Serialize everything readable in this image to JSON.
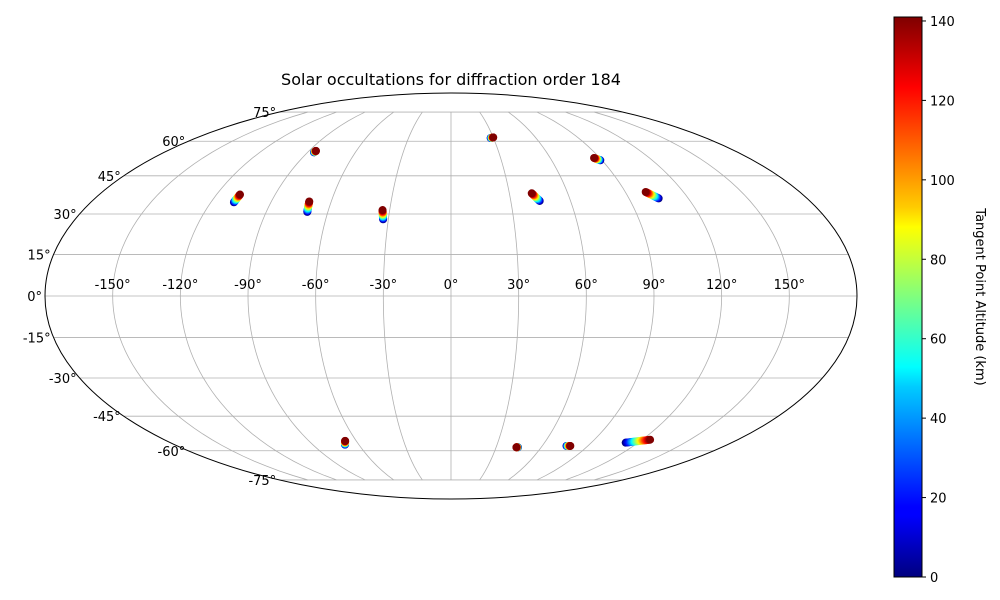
{
  "chart_data": {
    "type": "scatter",
    "projection": "mollweide",
    "title": "Solar occultations for diffraction order 184",
    "grid": true,
    "lon_tick_labels": [
      "-150°",
      "-120°",
      "-90°",
      "-60°",
      "-30°",
      "0°",
      "30°",
      "60°",
      "90°",
      "120°",
      "150°"
    ],
    "lon_ticks": [
      -150,
      -120,
      -90,
      -60,
      -30,
      0,
      30,
      60,
      90,
      120,
      150
    ],
    "lat_tick_labels": [
      "75°",
      "60°",
      "45°",
      "30°",
      "15°",
      "0°",
      "-15°",
      "-30°",
      "-45°",
      "-60°",
      "-75°"
    ],
    "lat_ticks": [
      75,
      60,
      45,
      30,
      15,
      0,
      -15,
      -30,
      -45,
      -60,
      -75
    ],
    "colorbar": {
      "label": "Tangent Point Altitude (km)",
      "colormap": "jet",
      "range": [
        0,
        141
      ],
      "tick_labels": [
        "0",
        "20",
        "40",
        "60",
        "80",
        "100",
        "120",
        "140"
      ],
      "ticks": [
        0,
        20,
        40,
        60,
        80,
        100,
        120,
        140
      ]
    },
    "occultations": [
      {
        "lon": [
          -108.5,
          -108.0
        ],
        "lat": [
          34.5,
          37.5
        ],
        "alt": [
          0,
          141
        ]
      },
      {
        "lon": [
          -86.0,
          -85.6
        ],
        "lat": [
          55.0,
          55.6
        ],
        "alt": [
          0,
          141
        ]
      },
      {
        "lon": [
          -70.0,
          -71.0
        ],
        "lat": [
          30.8,
          34.8
        ],
        "alt": [
          0,
          141
        ]
      },
      {
        "lon": [
          -32.5,
          -33.5
        ],
        "lat": [
          28.0,
          31.5
        ],
        "alt": [
          0,
          141
        ]
      },
      {
        "lon": [
          28.0,
          30.0
        ],
        "lat": [
          61.5,
          61.8
        ],
        "alt": [
          0,
          141
        ]
      },
      {
        "lon": [
          44.5,
          41.5
        ],
        "lat": [
          35.0,
          38.0
        ],
        "alt": [
          0,
          141
        ]
      },
      {
        "lon": [
          89.0,
          86.5
        ],
        "lat": [
          51.5,
          52.5
        ],
        "alt": [
          0,
          141
        ]
      },
      {
        "lon": [
          105.0,
          100.5
        ],
        "lat": [
          36.0,
          38.5
        ],
        "alt": [
          0,
          141
        ]
      },
      {
        "lon": [
          -69.0,
          -67.0
        ],
        "lat": [
          -57.2,
          -55.5
        ],
        "alt": [
          0,
          141
        ]
      },
      {
        "lon": [
          44.5,
          43.5
        ],
        "lat": [
          -58.4,
          -58.4
        ],
        "alt": [
          0,
          141
        ]
      },
      {
        "lon": [
          76.0,
          78.5
        ],
        "lat": [
          -57.8,
          -57.8
        ],
        "alt": [
          0,
          141
        ]
      },
      {
        "lon": [
          112.0,
          125.0
        ],
        "lat": [
          -56.3,
          -55.0
        ],
        "alt": [
          0,
          141
        ]
      }
    ]
  }
}
